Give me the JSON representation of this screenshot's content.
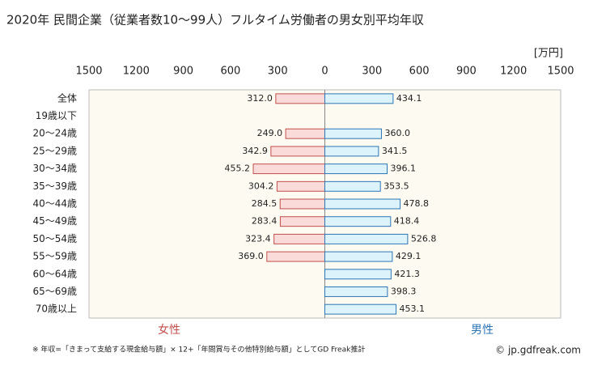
{
  "chart_data": {
    "type": "butterfly-bar",
    "title": "2020年 民間企業（従業者数10～99人）フルタイム労働者の男女別平均年収",
    "unit": "[万円]",
    "categories": [
      "全体",
      "19歳以下",
      "20～24歳",
      "25～29歳",
      "30～34歳",
      "35～39歳",
      "40～44歳",
      "45～49歳",
      "50～54歳",
      "55～59歳",
      "60～64歳",
      "65～69歳",
      "70歳以上"
    ],
    "series": [
      {
        "name": "女性",
        "side": "left",
        "color": "#c0504d",
        "fill": "#fadbd9",
        "values": [
          312.0,
          null,
          249.0,
          342.9,
          455.2,
          304.2,
          284.5,
          283.4,
          323.4,
          369.0,
          null,
          null,
          null
        ],
        "value_labels": [
          "312.0",
          null,
          "249.0",
          "342.9",
          "455.2",
          "304.2",
          "284.5",
          "283.4",
          "323.4",
          "369.0",
          null,
          null,
          null
        ]
      },
      {
        "name": "男性",
        "side": "right",
        "color": "#2e75b6",
        "fill": "#ddf3fb",
        "values": [
          434.1,
          null,
          360.0,
          341.5,
          396.1,
          353.5,
          478.8,
          418.4,
          526.8,
          429.1,
          421.3,
          398.3,
          453.1
        ],
        "value_labels": [
          "434.1",
          null,
          "360.0",
          "341.5",
          "396.1",
          "353.5",
          "478.8",
          "418.4",
          "526.8",
          "429.1",
          "421.3",
          "398.3",
          "453.1"
        ]
      }
    ],
    "xlim": [
      0,
      1500
    ],
    "xticks": [
      0,
      300,
      600,
      900,
      1200,
      1500
    ],
    "footnote": "※ 年収=「きまって支給する現金給与額」× 12+「年間賞与その他特別給与額」としてGD Freak推計",
    "source": "© jp.gdfreak.com"
  }
}
